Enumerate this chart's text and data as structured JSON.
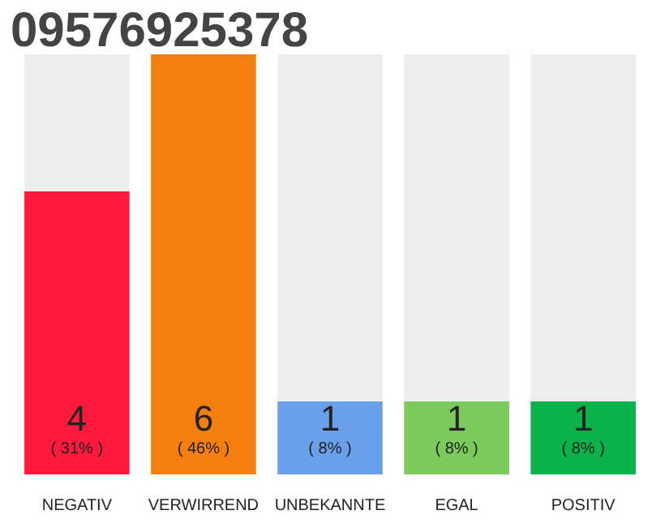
{
  "chart_data": {
    "type": "bar",
    "title": "09576925378",
    "categories": [
      "NEGATIV",
      "VERWIRREND",
      "UNBEKANNTE",
      "EGAL",
      "POSITIV"
    ],
    "values": [
      31,
      46,
      8,
      8,
      8
    ],
    "colors": [
      "#ff1a3c",
      "#f47f0e",
      "#6aa0ea",
      "#7cc95c",
      "#0ab34a"
    ],
    "value_labels": [
      "( 31% )",
      "( 46% )",
      "( 8% )",
      "( 8% )",
      "( 8% )"
    ],
    "annotations": [
      "4",
      "6",
      "1",
      "1",
      "1"
    ],
    "grid": false
  }
}
